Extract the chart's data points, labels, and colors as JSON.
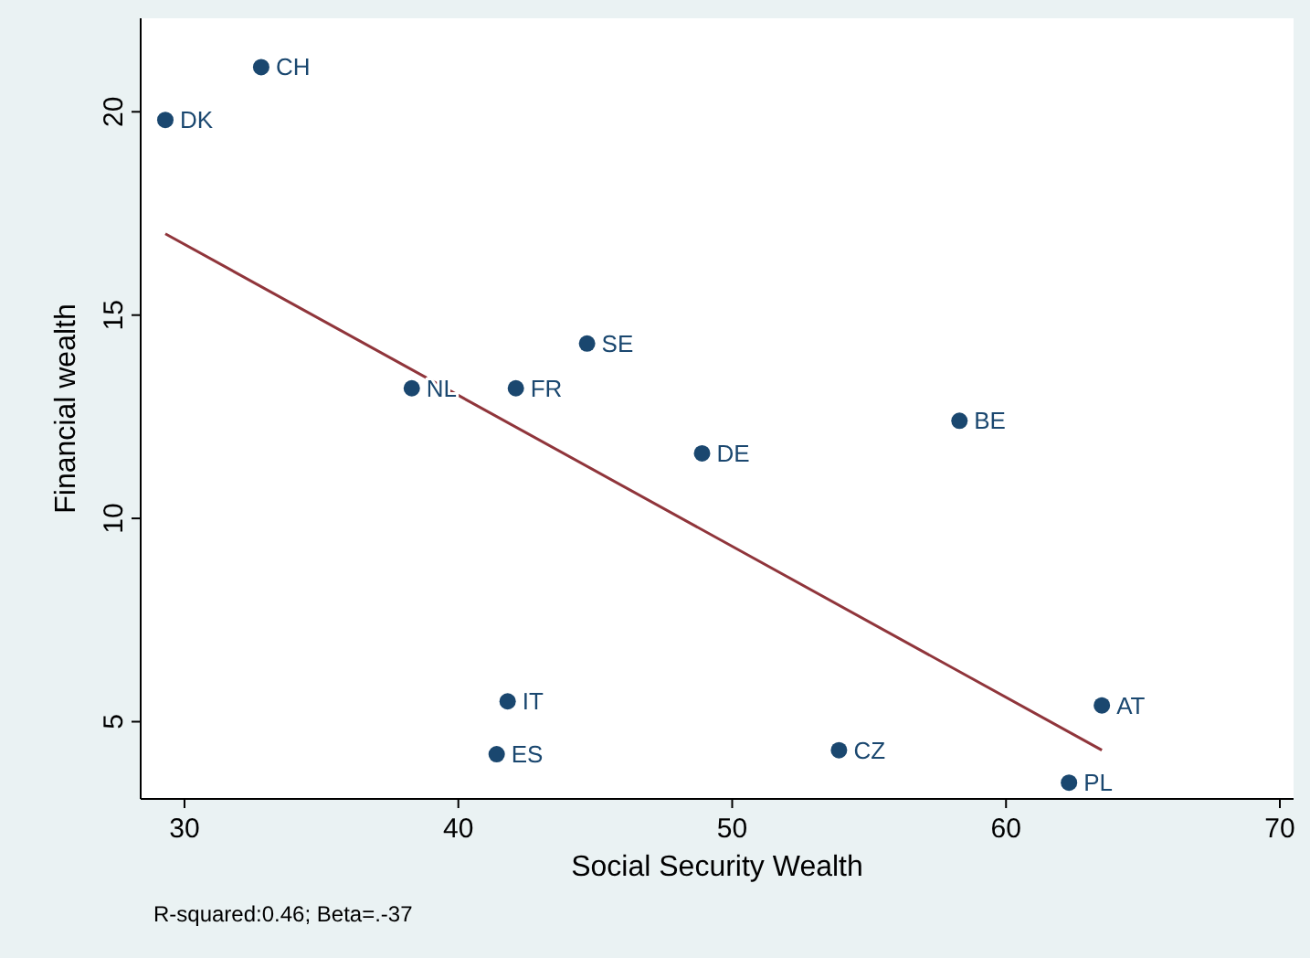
{
  "chart_data": {
    "type": "scatter",
    "xlabel": "Social Security Wealth",
    "ylabel": "Financial wealth",
    "xlim": [
      28.4,
      70.5
    ],
    "ylim": [
      3.1,
      22.3
    ],
    "xticks": [
      30,
      40,
      50,
      60,
      70
    ],
    "yticks": [
      5,
      10,
      15,
      20
    ],
    "grid": false,
    "series": [
      {
        "marker": "circle",
        "color": "#1a476f",
        "x": [
          32.8,
          29.3,
          44.7,
          38.3,
          42.1,
          58.3,
          48.9,
          41.8,
          63.5,
          41.4,
          53.9,
          62.3
        ],
        "values": [
          21.1,
          19.8,
          14.3,
          13.2,
          13.2,
          12.4,
          11.6,
          5.5,
          5.4,
          4.2,
          4.3,
          3.5
        ],
        "value_labels": [
          "CH",
          "DK",
          "SE",
          "NL",
          "FR",
          "BE",
          "DE",
          "IT",
          "AT",
          "ES",
          "CZ",
          "PL"
        ]
      },
      {
        "type": "line",
        "color": "#90353b",
        "x": [
          29.3,
          63.5
        ],
        "values": [
          17.0,
          4.3
        ]
      }
    ],
    "annotations": [
      "R-squared:0.46; Beta=.-37"
    ]
  }
}
